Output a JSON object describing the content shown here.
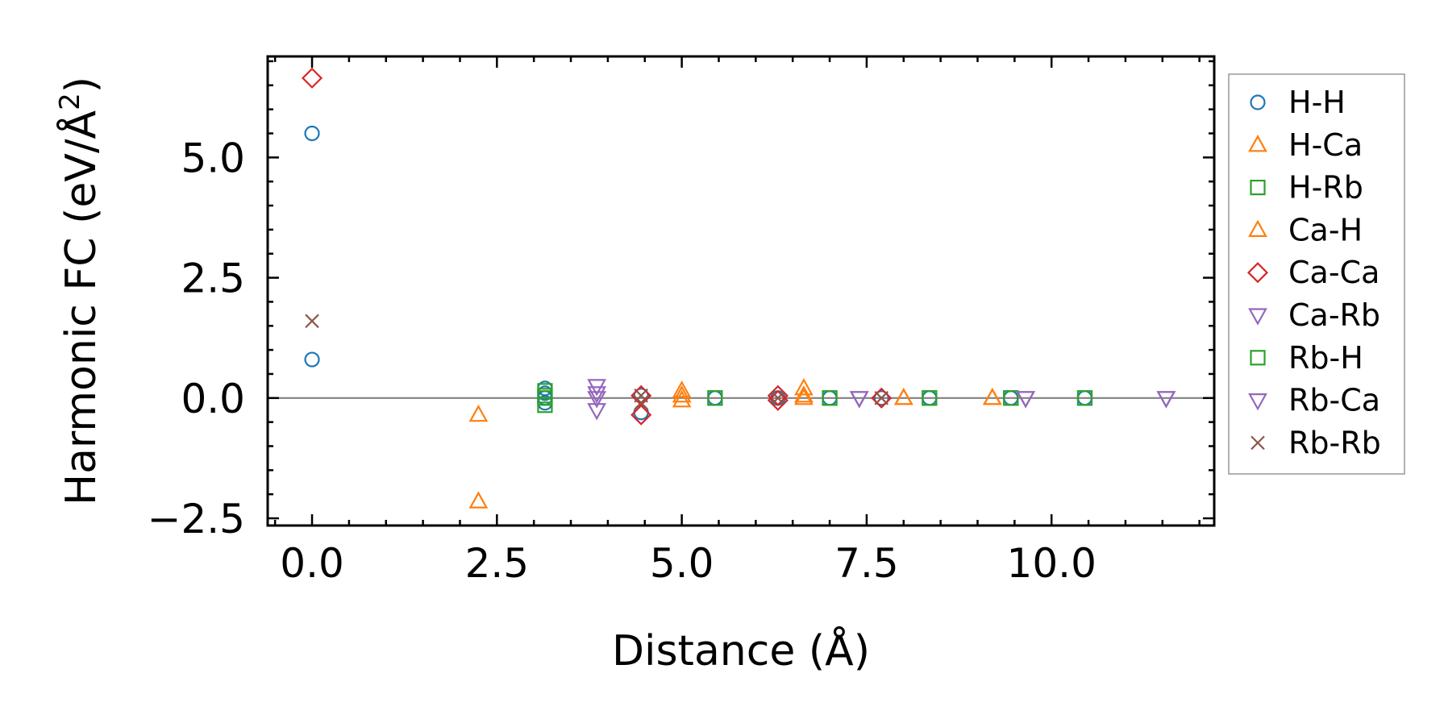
{
  "chart_data": {
    "type": "scatter",
    "xlabel": "Distance (Å)",
    "ylabel_main": "Harmonic FC (eV/Å",
    "ylabel_sup": "2",
    "ylabel_close": ")",
    "xlim": [
      -0.6,
      12.2
    ],
    "ylim": [
      -2.65,
      7.1
    ],
    "xticks": [
      0.0,
      2.5,
      5.0,
      7.5,
      10.0
    ],
    "xtick_labels": [
      "0.0",
      "2.5",
      "5.0",
      "7.5",
      "10.0"
    ],
    "yticks": [
      -2.5,
      0.0,
      2.5,
      5.0
    ],
    "ytick_labels": [
      "−2.5",
      "0.0",
      "2.5",
      "5.0"
    ],
    "zero_line": true,
    "legend_position": "outside-right",
    "series": [
      {
        "name": "H-H",
        "marker": "circle",
        "color": "#1f77b4",
        "x": [
          0,
          0,
          3.15,
          3.15,
          3.15,
          3.15,
          4.45,
          4.45,
          5.45,
          6.3,
          7.0,
          7.7,
          8.35,
          9.45,
          10.45
        ],
        "y": [
          5.5,
          0.8,
          0.2,
          0.1,
          0.0,
          -0.1,
          0.05,
          -0.3,
          0.0,
          0.0,
          0.0,
          0.0,
          0.0,
          0.0,
          0.0
        ]
      },
      {
        "name": "H-Ca",
        "marker": "triangle-up",
        "color": "#ff7f0e",
        "x": [
          2.25,
          2.25,
          5.0,
          5.0,
          6.65,
          6.65,
          8.0,
          9.2
        ],
        "y": [
          -0.35,
          -2.15,
          0.15,
          -0.05,
          0.2,
          0.0,
          0.0,
          0.0
        ]
      },
      {
        "name": "H-Rb",
        "marker": "square",
        "color": "#2ca02c",
        "x": [
          3.15,
          3.15,
          3.15,
          5.45,
          7.0,
          8.35,
          9.45,
          10.45
        ],
        "y": [
          0.15,
          0.0,
          -0.15,
          0.0,
          0.0,
          0.0,
          0.0,
          0.0
        ]
      },
      {
        "name": "Ca-H",
        "marker": "triangle-up",
        "color": "#ff7f0e",
        "x": [
          5.0,
          6.65,
          8.0,
          9.2
        ],
        "y": [
          0.05,
          0.05,
          0.0,
          0.0
        ]
      },
      {
        "name": "Ca-Ca",
        "marker": "diamond",
        "color": "#d62728",
        "x": [
          0,
          4.45,
          4.45,
          6.3,
          6.3,
          7.7
        ],
        "y": [
          6.65,
          0.05,
          -0.35,
          0.05,
          -0.05,
          0.0
        ]
      },
      {
        "name": "Ca-Rb",
        "marker": "triangle-down",
        "color": "#9467bd",
        "x": [
          3.85,
          3.85,
          3.85,
          7.4,
          9.65,
          11.55
        ],
        "y": [
          0.25,
          0.0,
          -0.25,
          0.0,
          0.0,
          0.0
        ]
      },
      {
        "name": "Rb-H",
        "marker": "square",
        "color": "#2ca02c",
        "x": [
          3.15,
          5.45,
          7.0,
          8.35,
          9.45,
          10.45
        ],
        "y": [
          0.05,
          0.0,
          0.0,
          0.0,
          0.0,
          0.0
        ]
      },
      {
        "name": "Rb-Ca",
        "marker": "triangle-down",
        "color": "#9467bd",
        "x": [
          3.85,
          7.4,
          9.65,
          11.55
        ],
        "y": [
          0.1,
          0.0,
          0.0,
          0.0
        ]
      },
      {
        "name": "Rb-Rb",
        "marker": "x",
        "color": "#8c564b",
        "x": [
          0,
          4.45,
          4.45,
          6.3,
          7.7
        ],
        "y": [
          1.6,
          0.05,
          -0.1,
          0.0,
          0.0
        ]
      }
    ]
  }
}
